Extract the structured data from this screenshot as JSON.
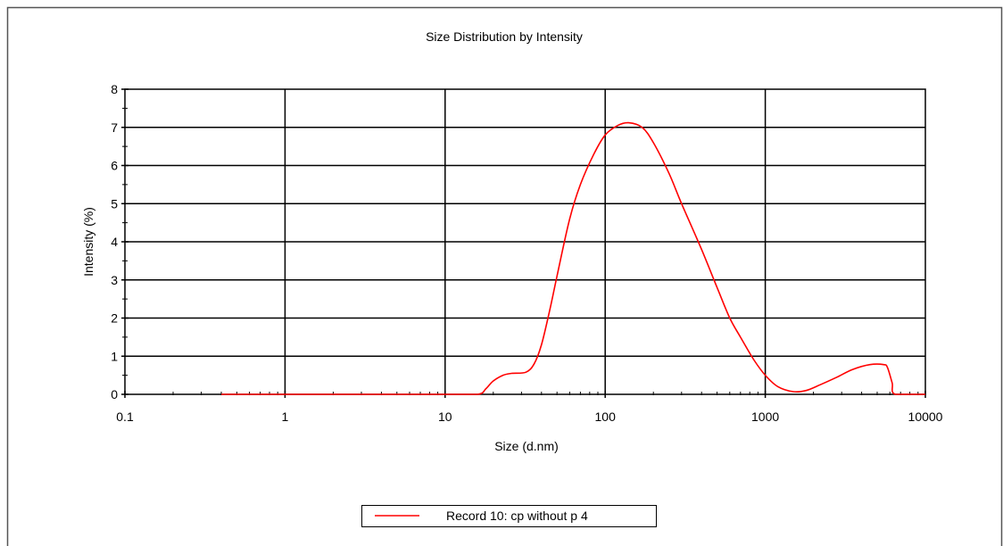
{
  "chart_data": {
    "type": "line",
    "title": "Size Distribution by Intensity",
    "xlabel": "Size (d.nm)",
    "ylabel": "Intensity (%)",
    "x_scale": "log",
    "xlim": [
      0.1,
      10000
    ],
    "ylim": [
      0,
      8
    ],
    "x_ticks": [
      {
        "value": 0.1,
        "label": "0.1"
      },
      {
        "value": 1,
        "label": "1"
      },
      {
        "value": 10,
        "label": "10"
      },
      {
        "value": 100,
        "label": "100"
      },
      {
        "value": 1000,
        "label": "1000"
      },
      {
        "value": 10000,
        "label": "10000"
      }
    ],
    "y_ticks": [
      {
        "value": 0,
        "label": "0"
      },
      {
        "value": 1,
        "label": "1"
      },
      {
        "value": 2,
        "label": "2"
      },
      {
        "value": 3,
        "label": "3"
      },
      {
        "value": 4,
        "label": "4"
      },
      {
        "value": 5,
        "label": "5"
      },
      {
        "value": 6,
        "label": "6"
      },
      {
        "value": 7,
        "label": "7"
      },
      {
        "value": 8,
        "label": "8"
      }
    ],
    "grid": true,
    "legend_position": "bottom-center",
    "series": [
      {
        "name": "Record 10: cp without p 4",
        "color": "#ff0000",
        "points": [
          [
            0.4,
            0
          ],
          [
            1,
            0
          ],
          [
            5,
            0
          ],
          [
            10,
            0
          ],
          [
            16,
            0
          ],
          [
            18,
            0.15
          ],
          [
            20,
            0.35
          ],
          [
            23,
            0.5
          ],
          [
            26,
            0.55
          ],
          [
            32,
            0.58
          ],
          [
            36,
            0.8
          ],
          [
            40,
            1.3
          ],
          [
            45,
            2.2
          ],
          [
            50,
            3.1
          ],
          [
            60,
            4.6
          ],
          [
            70,
            5.5
          ],
          [
            85,
            6.3
          ],
          [
            100,
            6.8
          ],
          [
            120,
            7.05
          ],
          [
            140,
            7.12
          ],
          [
            170,
            7.0
          ],
          [
            200,
            6.6
          ],
          [
            250,
            5.8
          ],
          [
            300,
            5.0
          ],
          [
            400,
            3.8
          ],
          [
            500,
            2.8
          ],
          [
            600,
            2.0
          ],
          [
            700,
            1.5
          ],
          [
            850,
            0.9
          ],
          [
            1000,
            0.5
          ],
          [
            1200,
            0.2
          ],
          [
            1500,
            0.07
          ],
          [
            1800,
            0.1
          ],
          [
            2200,
            0.25
          ],
          [
            2800,
            0.45
          ],
          [
            3500,
            0.65
          ],
          [
            4500,
            0.78
          ],
          [
            5500,
            0.78
          ],
          [
            5800,
            0.7
          ],
          [
            6200,
            0.3
          ],
          [
            6500,
            0
          ],
          [
            10000,
            0
          ]
        ]
      }
    ]
  }
}
